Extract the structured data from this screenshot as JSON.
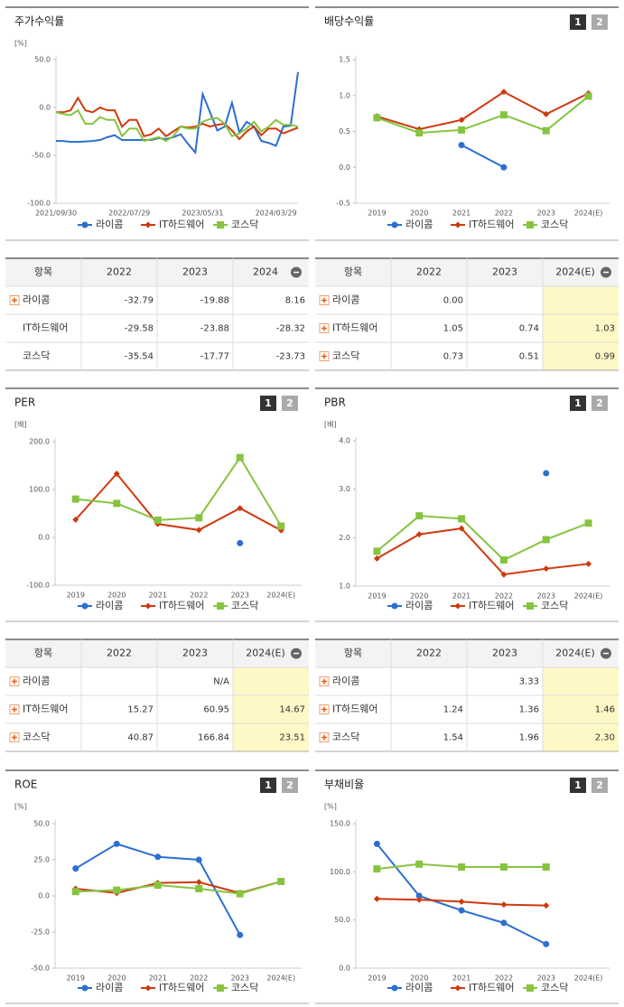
{
  "chart_data": [
    {
      "type": "line",
      "title": "주가수익률",
      "unit": "[%]",
      "markers": false,
      "categories": [
        "2021/09/30",
        null,
        null,
        null,
        null,
        null,
        null,
        null,
        null,
        null,
        "2022/07/29",
        null,
        null,
        null,
        null,
        null,
        null,
        null,
        null,
        null,
        "2023/05/31",
        null,
        null,
        null,
        null,
        null,
        null,
        null,
        null,
        null,
        "2024/03/29",
        null,
        null,
        null
      ],
      "series": [
        {
          "name": "라이콤",
          "color": "#2c6fd1",
          "marker": "circle",
          "values": [
            -35,
            -35,
            -36,
            -36,
            -35.5,
            -35,
            -34,
            -31,
            -29,
            -34,
            -34,
            -34,
            -34,
            -34,
            -32,
            -33,
            -31,
            -28,
            -38,
            -47,
            14,
            -5,
            -24,
            -20,
            5,
            -26,
            -15,
            -20,
            -35,
            -37,
            -40,
            -20,
            -19,
            37
          ]
        },
        {
          "name": "IT하드웨어",
          "color": "#d0390d",
          "marker": "diamond",
          "values": [
            -5,
            -5,
            -3,
            10,
            -3,
            -5,
            0,
            -3,
            -3,
            -20,
            -13,
            -13,
            -30,
            -28,
            -22,
            -30,
            -25,
            -20,
            -21,
            -20,
            -17,
            -20,
            -18,
            -17,
            -24,
            -33,
            -25,
            -20,
            -29,
            -22,
            -22,
            -27,
            -24,
            -21
          ]
        },
        {
          "name": "코스닥",
          "color": "#86c440",
          "marker": "square",
          "values": [
            -5,
            -7,
            -8,
            -3,
            -17,
            -17,
            -10,
            -13,
            -13,
            -30,
            -22,
            -22,
            -35,
            -33,
            -31,
            -35,
            -30,
            -20,
            -22,
            -22,
            -15,
            -12,
            -11,
            -17,
            -30,
            -27,
            -22,
            -15,
            -25,
            -20,
            -13,
            -18,
            -18,
            -20
          ]
        }
      ],
      "ylim": [
        -100,
        50
      ],
      "yticks": [
        {
          "value": 50,
          "label": "50.0"
        },
        {
          "value": 0,
          "label": "0.0"
        },
        {
          "value": -50,
          "label": "-50.0"
        },
        {
          "value": -100,
          "label": "-100.0"
        }
      ]
    },
    {
      "type": "line",
      "title": "배당수익률",
      "buttons": [
        "1",
        "2"
      ],
      "markers": true,
      "categories": [
        "2019",
        "2020",
        "2021",
        "2022",
        "2023",
        "2024(E)"
      ],
      "series": [
        {
          "name": "라이콤",
          "color": "#2c6fd1",
          "marker": "circle",
          "values": [
            null,
            null,
            0.31,
            0.0,
            null,
            null
          ]
        },
        {
          "name": "IT하드웨어",
          "color": "#d0390d",
          "marker": "diamond",
          "values": [
            0.71,
            0.53,
            0.66,
            1.05,
            0.74,
            1.03
          ]
        },
        {
          "name": "코스닥",
          "color": "#86c440",
          "marker": "square",
          "values": [
            0.69,
            0.48,
            0.52,
            0.73,
            0.51,
            0.99
          ]
        }
      ],
      "ylim": [
        -0.5,
        1.5
      ],
      "yticks": [
        1.5,
        {
          "value": 1,
          "label": "1.0"
        },
        0.5,
        {
          "value": 0,
          "label": "0.0"
        },
        -0.5
      ]
    },
    {
      "type": "line",
      "title": "PER",
      "unit": "[배]",
      "buttons": [
        "1",
        "2"
      ],
      "markers": true,
      "categories": [
        "2019",
        "2020",
        "2021",
        "2022",
        "2023",
        "2024(E)"
      ],
      "series": [
        {
          "name": "라이콤",
          "color": "#2c6fd1",
          "marker": "circle",
          "values": [
            null,
            null,
            null,
            null,
            -12,
            null
          ]
        },
        {
          "name": "IT하드웨어",
          "color": "#d0390d",
          "marker": "diamond",
          "values": [
            37,
            133,
            28,
            15.27,
            60.95,
            14.67
          ]
        },
        {
          "name": "코스닥",
          "color": "#86c440",
          "marker": "square",
          "values": [
            80,
            71,
            36,
            40.87,
            166.84,
            23.51
          ]
        }
      ],
      "ylim": [
        -100,
        200
      ],
      "yticks": [
        {
          "value": 200,
          "label": "200.0"
        },
        {
          "value": 100,
          "label": "100.0"
        },
        {
          "value": 0,
          "label": "0.0"
        },
        {
          "value": -100,
          "label": "-100.0"
        }
      ]
    },
    {
      "type": "line",
      "title": "PBR",
      "unit": "[배]",
      "buttons": [
        "1",
        "2"
      ],
      "markers": true,
      "categories": [
        "2019",
        "2020",
        "2021",
        "2022",
        "2023",
        "2024(E)"
      ],
      "series": [
        {
          "name": "라이콤",
          "color": "#2c6fd1",
          "marker": "circle",
          "values": [
            null,
            null,
            null,
            null,
            3.33,
            null
          ]
        },
        {
          "name": "IT하드웨어",
          "color": "#d0390d",
          "marker": "diamond",
          "values": [
            1.57,
            2.07,
            2.19,
            1.24,
            1.36,
            1.46
          ]
        },
        {
          "name": "코스닥",
          "color": "#86c440",
          "marker": "square",
          "values": [
            1.72,
            2.45,
            2.39,
            1.54,
            1.96,
            2.3
          ]
        }
      ],
      "ylim": [
        1,
        4
      ],
      "yticks": [
        {
          "value": 4,
          "label": "4.0"
        },
        {
          "value": 3,
          "label": "3.0"
        },
        {
          "value": 2,
          "label": "2.0"
        },
        {
          "value": 1,
          "label": "1.0"
        }
      ]
    },
    {
      "type": "line",
      "title": "ROE",
      "unit": "[%]",
      "buttons": [
        "1",
        "2"
      ],
      "markers": true,
      "categories": [
        "2019",
        "2020",
        "2021",
        "2022",
        "2023",
        "2024(E)"
      ],
      "series": [
        {
          "name": "라이콤",
          "color": "#2c6fd1",
          "marker": "circle",
          "values": [
            19,
            36,
            27,
            25,
            -27,
            null
          ]
        },
        {
          "name": "IT하드웨어",
          "color": "#d0390d",
          "marker": "diamond",
          "values": [
            5,
            2,
            9,
            9.5,
            2,
            10
          ]
        },
        {
          "name": "코스닥",
          "color": "#86c440",
          "marker": "square",
          "values": [
            3,
            4,
            7.5,
            5,
            1.5,
            10
          ]
        }
      ],
      "ylim": [
        -50,
        50
      ],
      "yticks": [
        {
          "value": 50,
          "label": "50.0"
        },
        {
          "value": 25,
          "label": "25.0"
        },
        {
          "value": 0,
          "label": "0.0"
        },
        {
          "value": -25,
          "label": "-25.0"
        },
        {
          "value": -50,
          "label": "-50.0"
        }
      ]
    },
    {
      "type": "line",
      "title": "부채비율",
      "unit": "[%]",
      "buttons": [
        "1",
        "2"
      ],
      "markers": true,
      "categories": [
        "2019",
        "2020",
        "2021",
        "2022",
        "2023",
        "2024(E)"
      ],
      "series": [
        {
          "name": "라이콤",
          "color": "#2c6fd1",
          "marker": "circle",
          "values": [
            129,
            75,
            60,
            47,
            25,
            null
          ]
        },
        {
          "name": "IT하드웨어",
          "color": "#d0390d",
          "marker": "diamond",
          "values": [
            72,
            71,
            69,
            66,
            65,
            null
          ]
        },
        {
          "name": "코스닥",
          "color": "#86c440",
          "marker": "square",
          "values": [
            103,
            108,
            105,
            105,
            105,
            null
          ]
        }
      ],
      "ylim": [
        0,
        150
      ],
      "yticks": [
        {
          "value": 150,
          "label": "150.0"
        },
        {
          "value": 100,
          "label": "100.0"
        },
        {
          "value": 50,
          "label": "50.0"
        },
        {
          "value": 0,
          "label": "0.0"
        }
      ]
    }
  ],
  "tables": [
    {
      "columns": [
        "항목",
        "2022",
        "2023",
        "2024"
      ],
      "highlight_last": false,
      "rows": [
        {
          "label": "라이콤",
          "expandable": true,
          "cells": [
            "-32.79",
            "-19.88",
            "8.16"
          ]
        },
        {
          "label": "IT하드웨어",
          "expandable": false,
          "cells": [
            "-29.58",
            "-23.88",
            "-28.32"
          ]
        },
        {
          "label": "코스닥",
          "expandable": false,
          "cells": [
            "-35.54",
            "-17.77",
            "-23.73"
          ]
        }
      ]
    },
    {
      "columns": [
        "항목",
        "2022",
        "2023",
        "2024(E)"
      ],
      "highlight_last": true,
      "rows": [
        {
          "label": "라이콤",
          "expandable": true,
          "cells": [
            "0.00",
            null,
            null
          ]
        },
        {
          "label": "IT하드웨어",
          "expandable": true,
          "cells": [
            "1.05",
            "0.74",
            "1.03"
          ]
        },
        {
          "label": "코스닥",
          "expandable": true,
          "cells": [
            "0.73",
            "0.51",
            "0.99"
          ]
        }
      ]
    },
    {
      "columns": [
        "항목",
        "2022",
        "2023",
        "2024(E)"
      ],
      "highlight_last": true,
      "rows": [
        {
          "label": "라이콤",
          "expandable": true,
          "cells": [
            null,
            "N/A",
            null
          ]
        },
        {
          "label": "IT하드웨어",
          "expandable": true,
          "cells": [
            "15.27",
            "60.95",
            "14.67"
          ]
        },
        {
          "label": "코스닥",
          "expandable": true,
          "cells": [
            "40.87",
            "166.84",
            "23.51"
          ]
        }
      ]
    },
    {
      "columns": [
        "항목",
        "2022",
        "2023",
        "2024(E)"
      ],
      "highlight_last": true,
      "rows": [
        {
          "label": "라이콤",
          "expandable": true,
          "cells": [
            null,
            "3.33",
            null
          ]
        },
        {
          "label": "IT하드웨어",
          "expandable": true,
          "cells": [
            "1.24",
            "1.36",
            "1.46"
          ]
        },
        {
          "label": "코스닥",
          "expandable": true,
          "cells": [
            "1.54",
            "1.96",
            "2.30"
          ]
        }
      ]
    }
  ]
}
